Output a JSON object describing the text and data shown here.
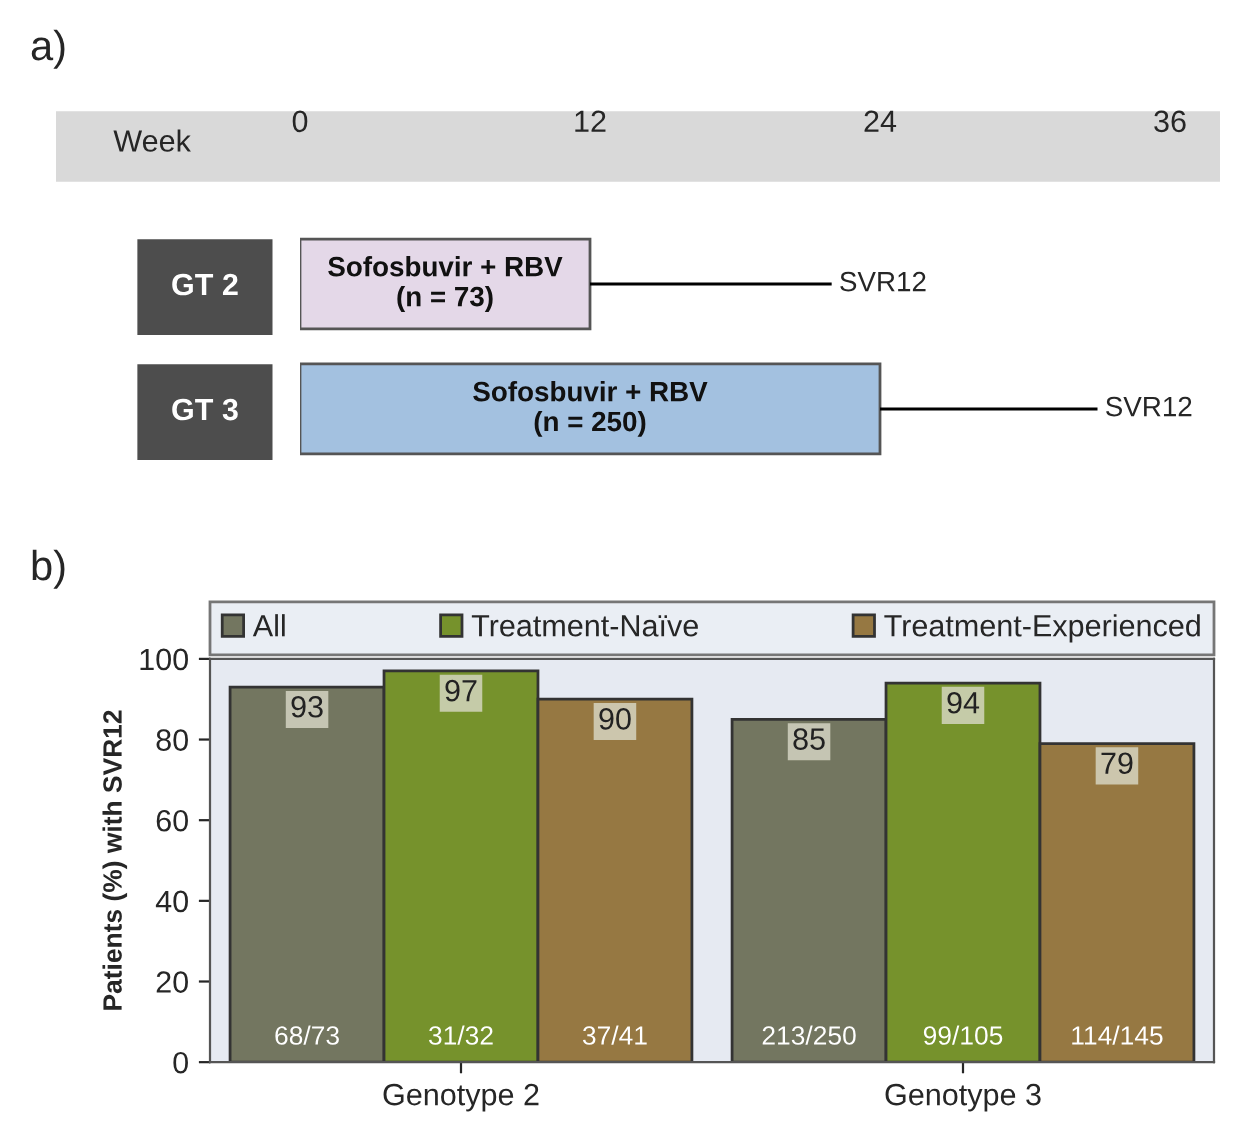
{
  "chart_data": [
    {
      "type": "bar",
      "title": "a)",
      "orientation": "horizontal",
      "stacked": true,
      "xlabel": "Week",
      "categories": [
        "GT 2",
        "GT 3"
      ],
      "series": [
        {
          "colors": [
            "#e4d8e8",
            "#a3c1e0"
          ],
          "values": [
            12,
            24
          ]
        },
        {
          "color": "#000000",
          "values": [
            10,
            9
          ]
        }
      ],
      "xlim": [
        0,
        36
      ],
      "xticks": [
        0,
        12,
        24,
        36
      ],
      "grid": false,
      "annotations": [
        "Sofosbuvir + RBV\n(n = 73)",
        "Sofosbuvir + RBV\n(n = 250)",
        "SVR12",
        "SVR12"
      ]
    },
    {
      "type": "bar",
      "title": "b)",
      "ylabel": "Patients (%) with SVR12",
      "categories": [
        "Genotype 2",
        "Genotype 3"
      ],
      "series": [
        {
          "name": "All",
          "color": "#737660",
          "values": [
            93,
            85
          ],
          "value_labels": [
            "93",
            "85"
          ]
        },
        {
          "name": "Treatment-Naïve",
          "color": "#76922c",
          "values": [
            97,
            94
          ],
          "value_labels": [
            "97",
            "94"
          ]
        },
        {
          "name": "Treatment-Experienced",
          "color": "#967842",
          "values": [
            90,
            79
          ],
          "value_labels": [
            "90",
            "79"
          ]
        }
      ],
      "ylim": [
        0,
        100
      ],
      "yticks": [
        0,
        20,
        40,
        60,
        80,
        100
      ],
      "grid": false,
      "legend": "top",
      "annotations": [
        "68/73",
        "213/250",
        "31/32",
        "99/105",
        "37/41",
        "114/145"
      ]
    }
  ]
}
